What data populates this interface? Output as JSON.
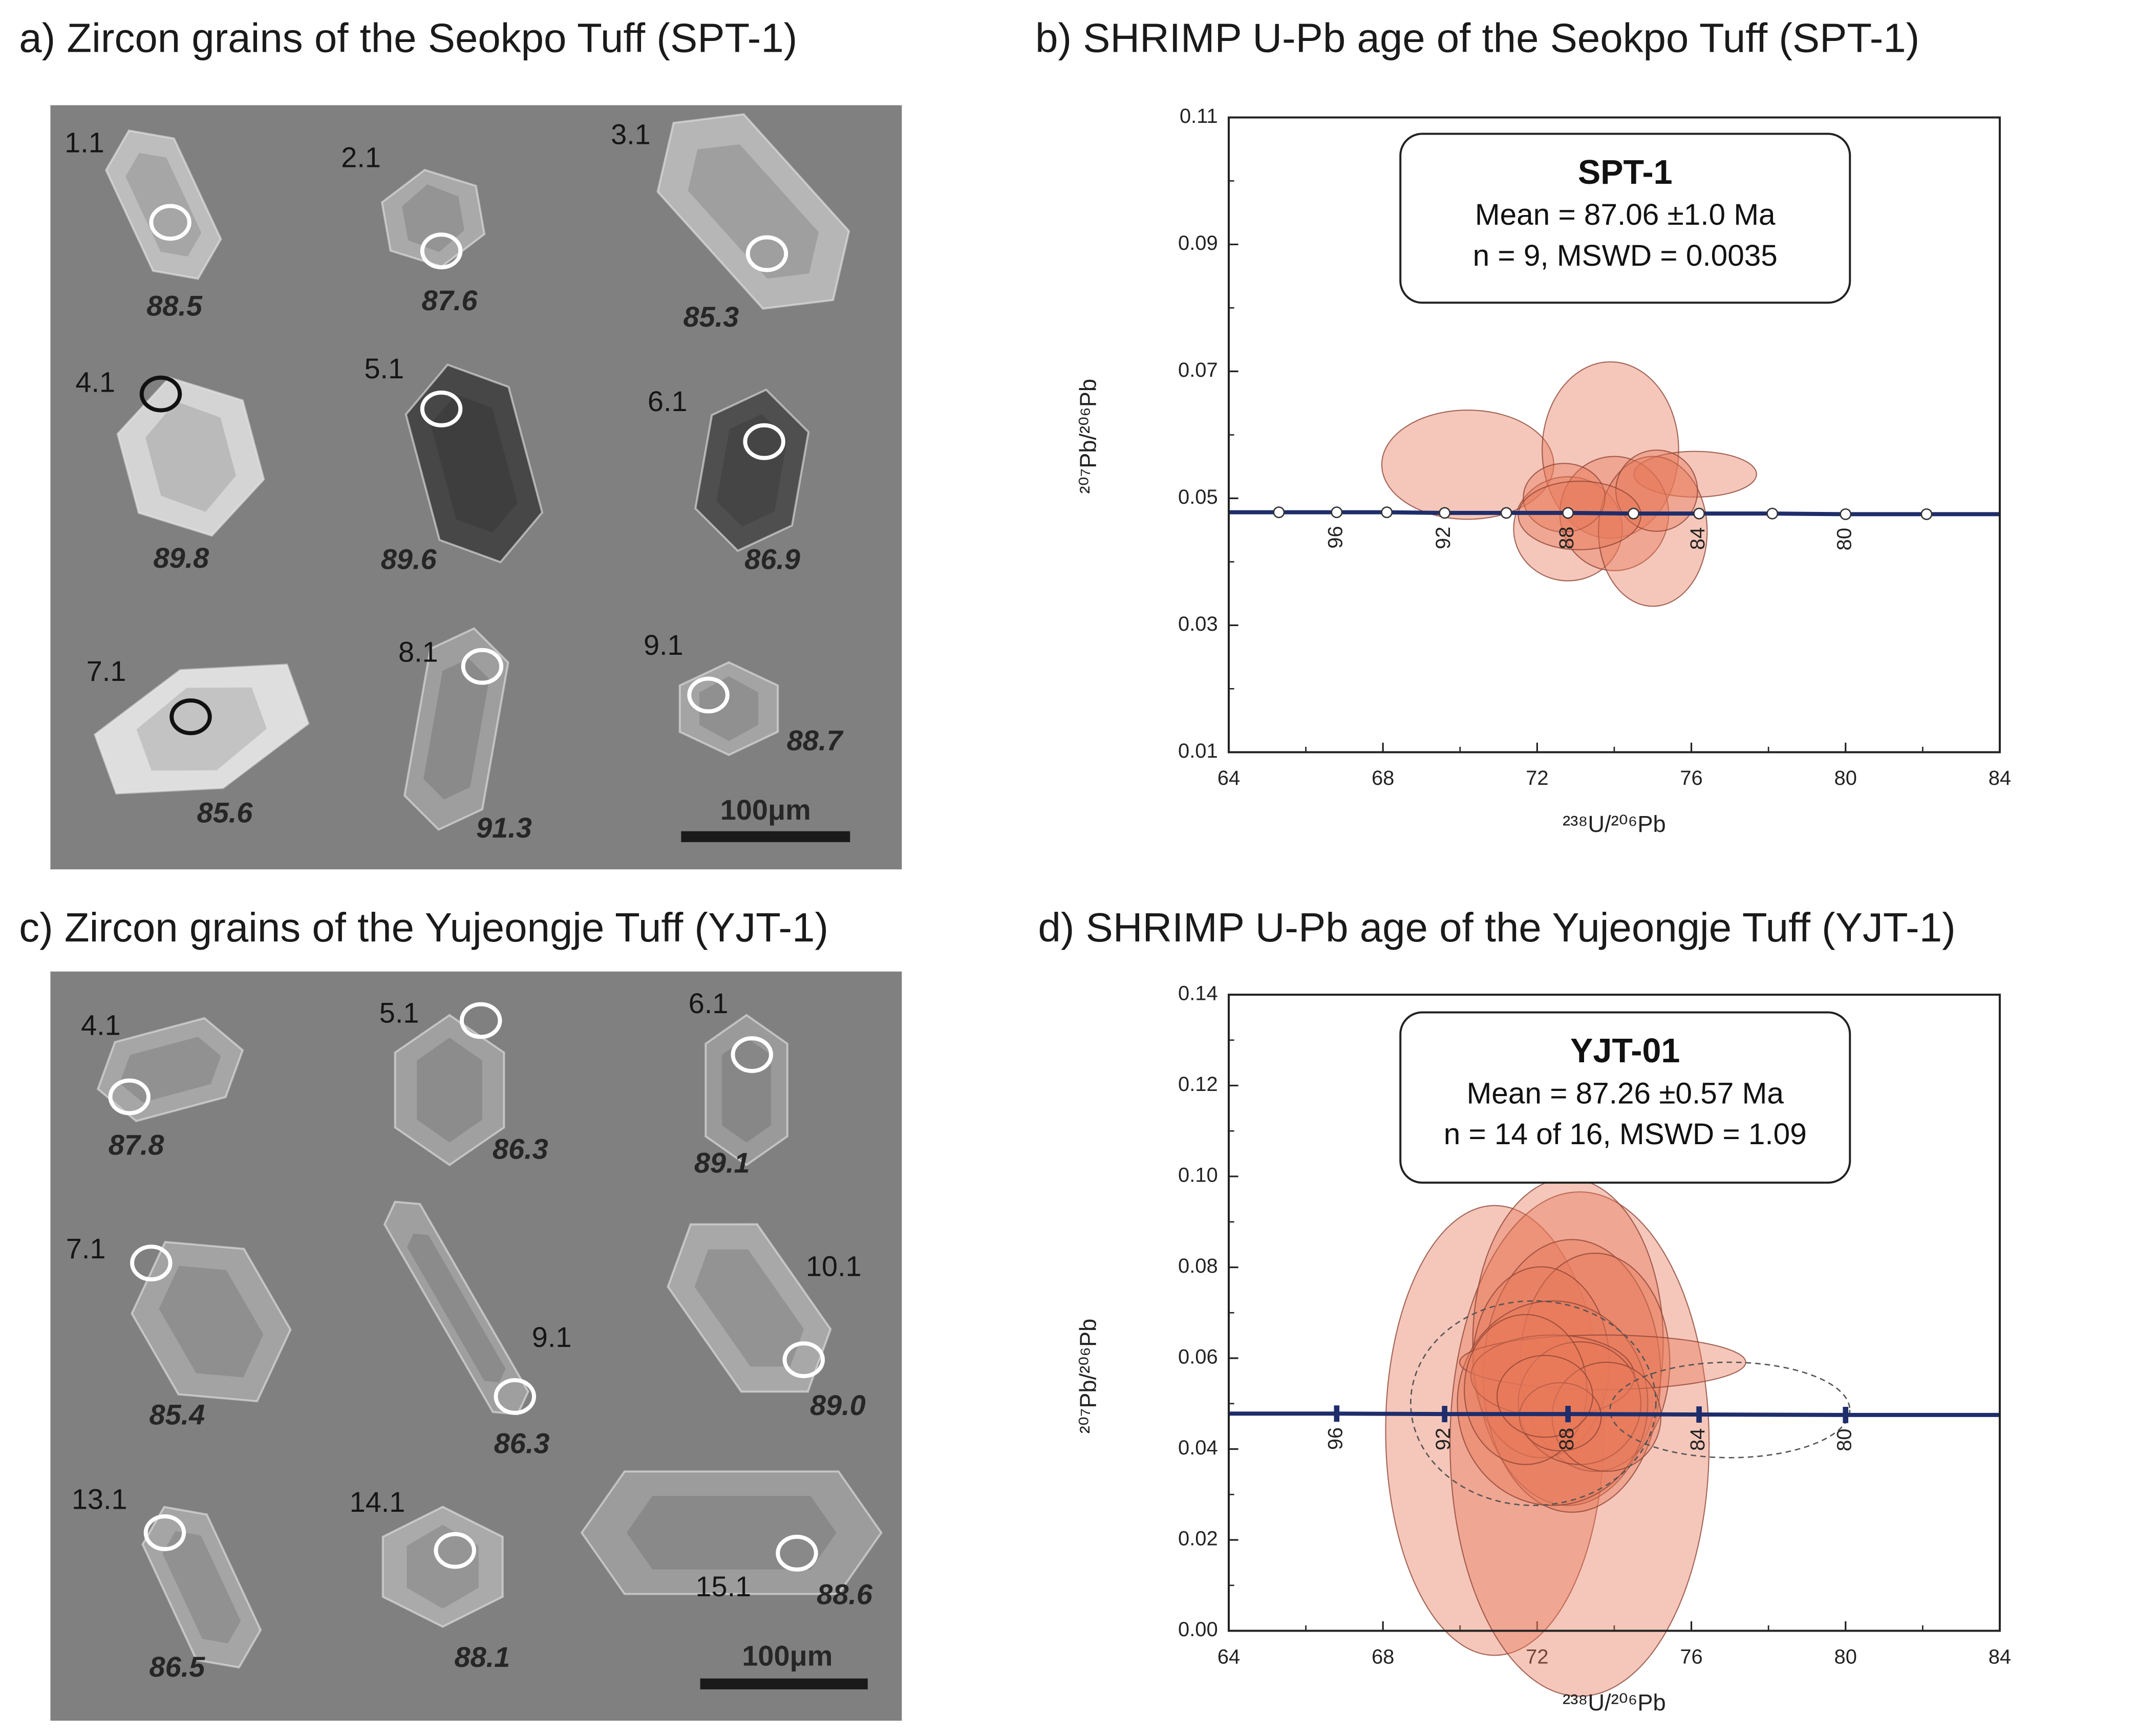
{
  "panels": [
    {
      "title": "a) Zircon grains of the Seokpo Tuff (SPT-1)",
      "grains": [
        {
          "spot": "1.1",
          "age": "88.5"
        },
        {
          "spot": "2.1",
          "age": "87.6"
        },
        {
          "spot": "3.1",
          "age": "85.3"
        },
        {
          "spot": "4.1",
          "age": "89.8"
        },
        {
          "spot": "5.1",
          "age": "89.6"
        },
        {
          "spot": "6.1",
          "age": "86.9"
        },
        {
          "spot": "7.1",
          "age": "85.6"
        },
        {
          "spot": "8.1",
          "age": "91.3"
        },
        {
          "spot": "9.1",
          "age": "88.7"
        }
      ],
      "scale_bar": "100μm"
    },
    {
      "title": "c) Zircon grains of the Yujeongje Tuff (YJT-1)",
      "grains": [
        {
          "spot": "4.1",
          "age": "87.8"
        },
        {
          "spot": "5.1",
          "age": "86.3"
        },
        {
          "spot": "6.1",
          "age": "89.1"
        },
        {
          "spot": "7.1",
          "age": "85.4"
        },
        {
          "spot": "9.1",
          "age": "86.3"
        },
        {
          "spot": "10.1",
          "age": "89.0"
        },
        {
          "spot": "13.1",
          "age": "86.5"
        },
        {
          "spot": "14.1",
          "age": "88.1"
        },
        {
          "spot": "15.1",
          "age": "88.6"
        }
      ],
      "scale_bar": "100μm"
    }
  ],
  "chart_data": [
    {
      "type": "concordia",
      "title": "b) SHRIMP U-Pb age of the Seokpo Tuff (SPT-1)",
      "x_label": "²³⁸U/²⁰⁶Pb",
      "y_label": "²⁰⁷Pb/²⁰⁶Pb",
      "xlim": [
        64,
        84
      ],
      "ylim": [
        0.01,
        0.11
      ],
      "xticks": [
        64,
        68,
        72,
        76,
        80,
        84
      ],
      "yticks": [
        0.01,
        0.03,
        0.05,
        0.07,
        0.09,
        0.11
      ],
      "box": {
        "sample": "SPT-1",
        "mean": "Mean = 87.06 ±1.0 Ma",
        "stats": "n = 9, MSWD = 0.0035"
      },
      "concordia": {
        "marker": "circle",
        "color": "#1f2d6b",
        "x": [
          65.3,
          66.8,
          68.1,
          69.6,
          71.2,
          72.8,
          74.5,
          76.2,
          78.1,
          80,
          82.1
        ],
        "y": [
          0.0478,
          0.0478,
          0.0478,
          0.0477,
          0.0477,
          0.0477,
          0.0476,
          0.0476,
          0.0476,
          0.0475,
          0.0475
        ],
        "labels": [
          null,
          96,
          null,
          92,
          null,
          88,
          null,
          84,
          null,
          80,
          null
        ]
      },
      "color": "#e8795a",
      "ellipses": [
        {
          "x": 70.2,
          "x_err": 2.23,
          "y": 0.0553,
          "y_err": 0.0086
        },
        {
          "x": 73.9,
          "x_err": 1.77,
          "y": 0.0576,
          "y_err": 0.0139
        },
        {
          "x": 76.1,
          "x_err": 1.59,
          "y": 0.0538,
          "y_err": 0.0036
        },
        {
          "x": 72.8,
          "x_err": 1.41,
          "y": 0.0452,
          "y_err": 0.0082
        },
        {
          "x": 74.0,
          "x_err": 1.41,
          "y": 0.0476,
          "y_err": 0.009
        },
        {
          "x": 75.0,
          "x_err": 1.41,
          "y": 0.0448,
          "y_err": 0.0118
        },
        {
          "x": 75.1,
          "x_err": 1.06,
          "y": 0.0512,
          "y_err": 0.0064
        },
        {
          "x": 72.7,
          "x_err": 1.06,
          "y": 0.0501,
          "y_err": 0.0054
        },
        {
          "x": 73.1,
          "x_err": 1.59,
          "y": 0.0473,
          "y_err": 0.0054
        }
      ]
    },
    {
      "type": "concordia",
      "title": "d) SHRIMP U-Pb age of the Yujeongje Tuff (YJT-1)",
      "x_label": "²³⁸U/²⁰⁶Pb",
      "y_label": "²⁰⁷Pb/²⁰⁶Pb",
      "xlim": [
        64,
        84
      ],
      "ylim": [
        0,
        0.14
      ],
      "xticks": [
        64,
        68,
        72,
        76,
        80,
        84
      ],
      "yticks": [
        {
          "value": 0,
          "label": "0.00"
        },
        0.02,
        0.04,
        0.06,
        0.08,
        {
          "value": 0.1,
          "label": "0.10"
        },
        0.12,
        0.14
      ],
      "box": {
        "sample": "YJT-01",
        "mean": "Mean = 87.26 ±0.57 Ma",
        "stats": "n = 14 of 16, MSWD = 1.09"
      },
      "concordia": {
        "marker": "tick",
        "color": "#1f2d6b",
        "x": [
          66.8,
          69.6,
          72.8,
          76.2,
          80
        ],
        "y": [
          0.0478,
          0.0477,
          0.0477,
          0.0476,
          0.0475
        ],
        "labels": [
          96,
          92,
          88,
          84,
          80
        ]
      },
      "color": "#e8795a",
      "ellipses": [
        {
          "x": 70.9,
          "x_err": 2.83,
          "y": 0.0441,
          "y_err": 0.0495
        },
        {
          "x": 73.1,
          "x_err": 3.36,
          "y": 0.0411,
          "y_err": 0.0555
        },
        {
          "x": 72.8,
          "x_err": 2.47,
          "y": 0.0636,
          "y_err": 0.036
        },
        {
          "x": 72.9,
          "x_err": 2.3,
          "y": 0.0561,
          "y_err": 0.03
        },
        {
          "x": 73.5,
          "x_err": 1.94,
          "y": 0.0591,
          "y_err": 0.024
        },
        {
          "x": 72.1,
          "x_err": 1.77,
          "y": 0.0591,
          "y_err": 0.021
        },
        {
          "x": 72.4,
          "x_err": 2.47,
          "y": 0.0501,
          "y_err": 0.0225
        },
        {
          "x": 73.7,
          "x_err": 3.71,
          "y": 0.0591,
          "y_err": 0.006
        },
        {
          "x": 72.4,
          "x_err": 2.12,
          "y": 0.0561,
          "y_err": 0.009
        },
        {
          "x": 73.1,
          "x_err": 1.59,
          "y": 0.0501,
          "y_err": 0.0135
        },
        {
          "x": 71.7,
          "x_err": 1.59,
          "y": 0.0531,
          "y_err": 0.0165
        },
        {
          "x": 73.8,
          "x_err": 1.41,
          "y": 0.0471,
          "y_err": 0.012
        },
        {
          "x": 72.6,
          "x_err": 1.06,
          "y": 0.0471,
          "y_err": 0.0075
        },
        {
          "x": 72.2,
          "x_err": 1.24,
          "y": 0.0516,
          "y_err": 0.009
        },
        {
          "x": 71.9,
          "x_err": 3.18,
          "y": 0.0501,
          "y_err": 0.0225,
          "rejected": true
        },
        {
          "x": 77.0,
          "x_err": 3.11,
          "y": 0.0486,
          "y_err": 0.0105,
          "rejected": true
        }
      ]
    }
  ]
}
